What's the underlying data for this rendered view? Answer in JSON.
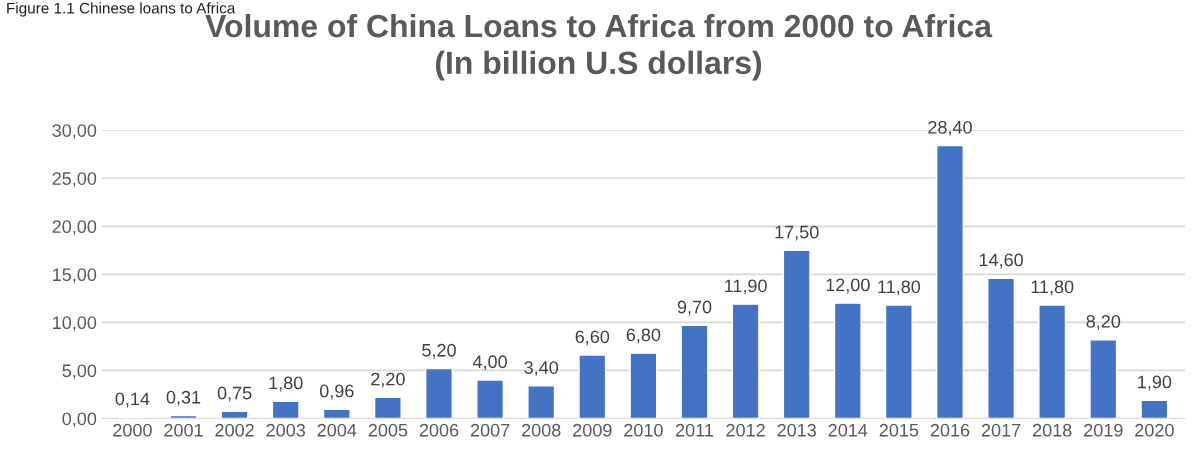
{
  "chart_data": {
    "type": "bar",
    "title": "Volume of China Loans to Africa from 2000 to Africa\n(In billion U.S dollars)",
    "annotations": [
      "Figure 1.1 Chinese loans to Africa"
    ],
    "categories": [
      "2000",
      "2001",
      "2002",
      "2003",
      "2004",
      "2005",
      "2006",
      "2007",
      "2008",
      "2009",
      "2010",
      "2011",
      "2012",
      "2013",
      "2014",
      "2015",
      "2016",
      "2017",
      "2018",
      "2019",
      "2020"
    ],
    "values": [
      0.14,
      0.31,
      0.75,
      1.8,
      0.96,
      2.2,
      5.2,
      4.0,
      3.4,
      6.6,
      6.8,
      9.7,
      11.9,
      17.5,
      12.0,
      11.8,
      28.4,
      14.6,
      11.8,
      8.2,
      1.9
    ],
    "value_labels": [
      "0,14",
      "0,31",
      "0,75",
      "1,80",
      "0,96",
      "2,20",
      "5,20",
      "4,00",
      "3,40",
      "6,60",
      "6,80",
      "9,70",
      "11,90",
      "17,50",
      "12,00",
      "11,80",
      "28,40",
      "14,60",
      "11,80",
      "8,20",
      "1,90"
    ],
    "color": "#4472c4",
    "ylim": [
      0,
      30
    ],
    "yticks": [
      {
        "value": 0,
        "label": "0,00"
      },
      {
        "value": 5,
        "label": "5,00"
      },
      {
        "value": 10,
        "label": "10,00"
      },
      {
        "value": 15,
        "label": "15,00"
      },
      {
        "value": 20,
        "label": "20,00"
      },
      {
        "value": 25,
        "label": "25,00"
      },
      {
        "value": 30,
        "label": "30,00"
      }
    ],
    "grid": "y",
    "legend": false
  }
}
